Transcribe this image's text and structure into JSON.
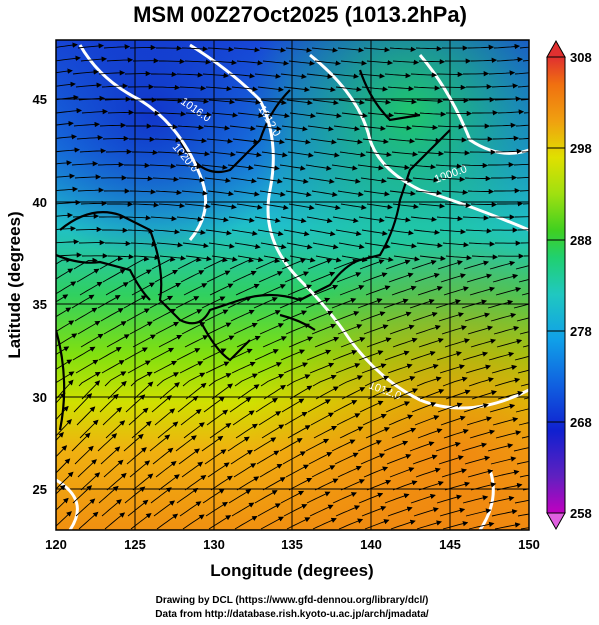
{
  "title": "MSM 00Z27Oct2025 (1013.2hPa)",
  "xlabel": "Longitude (degrees)",
  "ylabel": "Latitude  (degrees)",
  "x_ticks": [
    "120",
    "125",
    "130",
    "135",
    "140",
    "145",
    "150"
  ],
  "y_ticks": [
    "25",
    "30",
    "35",
    "40",
    "45"
  ],
  "colorbar": {
    "ticks": [
      "258",
      "268",
      "278",
      "288",
      "298",
      "308"
    ],
    "min": 258,
    "max": 308,
    "colors": [
      "#c000c0",
      "#6020c0",
      "#1020d0",
      "#1060e0",
      "#10a0e8",
      "#20c8c0",
      "#20d070",
      "#40d020",
      "#a0e010",
      "#e0e000",
      "#f0a010",
      "#f07010",
      "#e03030"
    ]
  },
  "contour_labels": [
    "1016.0",
    "1012.0",
    "1020.0",
    "1000.0",
    "1012.0"
  ],
  "credits": {
    "line1": "Drawing by DCL (https://www.gfd-dennou.org/library/dcl/)",
    "line2": "Data from http://database.rish.kyoto-u.ac.jp/arch/jmadata/"
  },
  "map_data": {
    "lon_range": [
      120,
      150
    ],
    "lat_range": [
      22.5,
      47.5
    ],
    "field": "temperature (K) shaded, pressure contours (hPa), wind streamlines"
  }
}
